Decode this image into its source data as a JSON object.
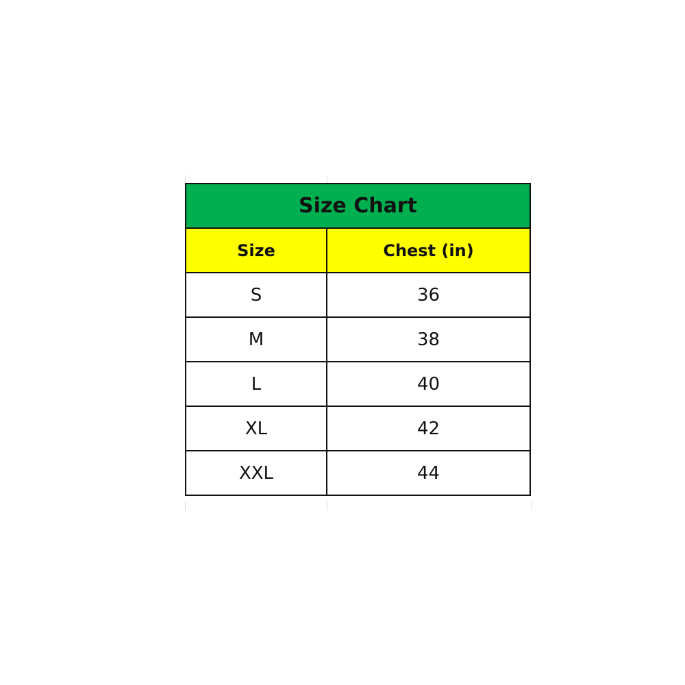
{
  "title": "Size Chart",
  "columns": [
    "Size",
    "Chest (in)"
  ],
  "rows": [
    {
      "size": "S",
      "chest": "36"
    },
    {
      "size": "M",
      "chest": "38"
    },
    {
      "size": "L",
      "chest": "40"
    },
    {
      "size": "XL",
      "chest": "42"
    },
    {
      "size": "XXL",
      "chest": "44"
    }
  ],
  "colors": {
    "title_bg": "#00B050",
    "header_bg": "#FFFF00",
    "border": "#111111"
  }
}
